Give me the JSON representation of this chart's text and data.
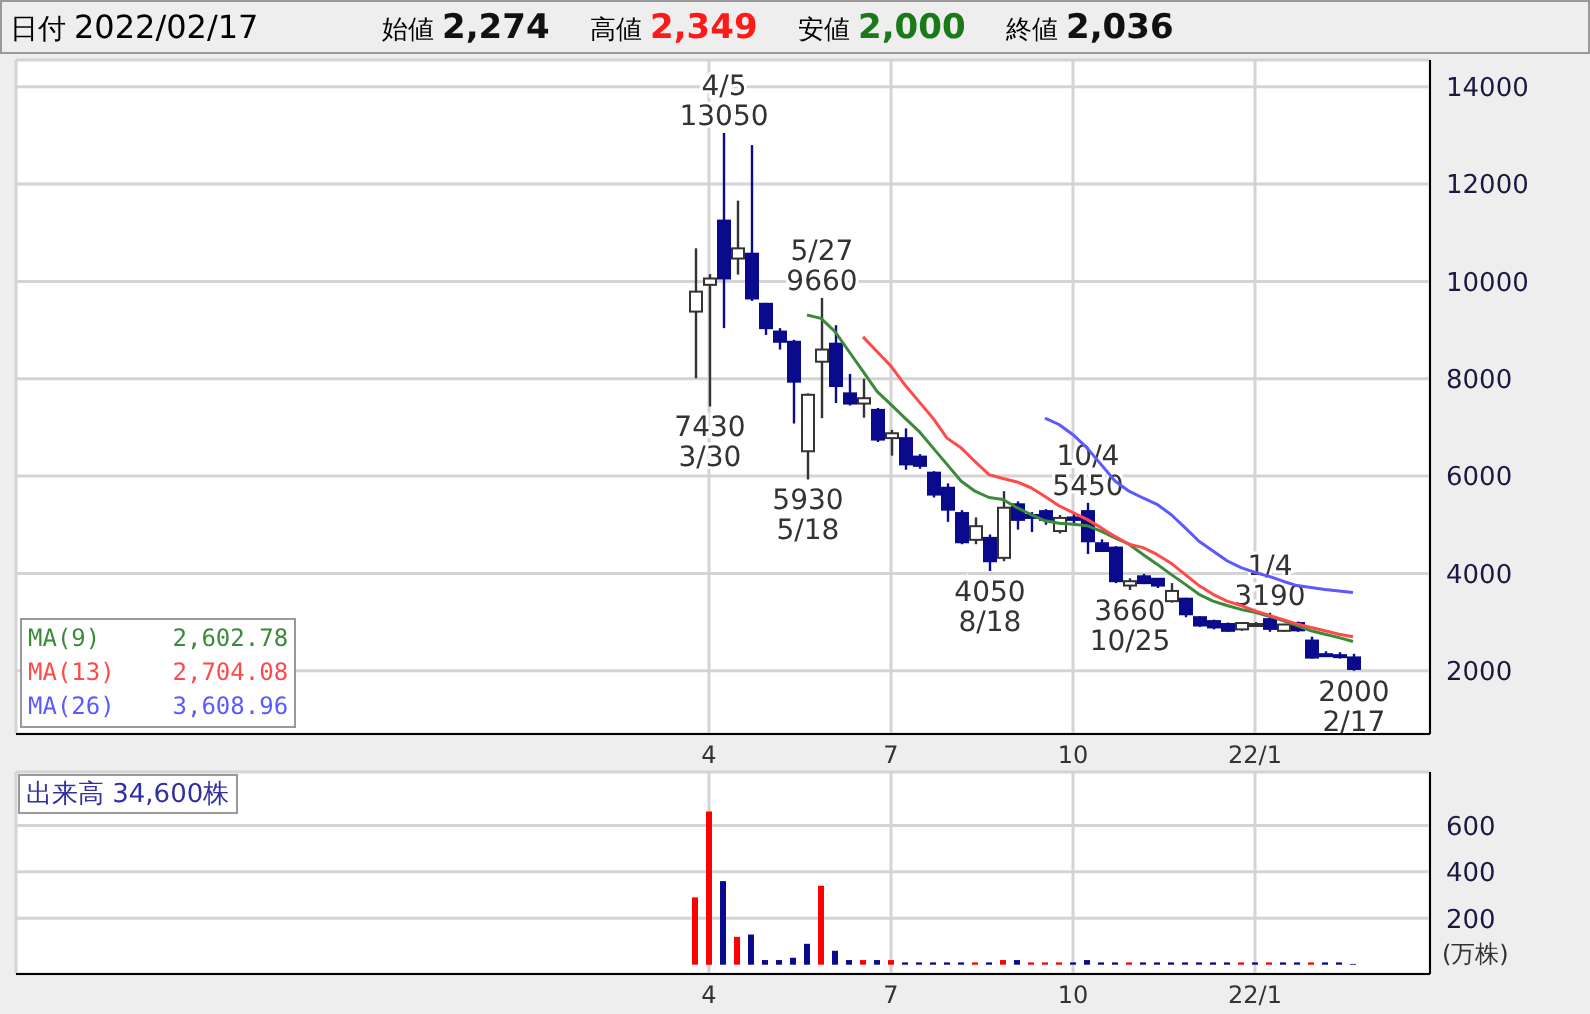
{
  "chart_data": [
    {
      "type": "candlestick",
      "title": "日付 2022/02/17",
      "categories": [
        null,
        null,
        null,
        null,
        null,
        null,
        null,
        null,
        null,
        null,
        null,
        null,
        null,
        null,
        null,
        null,
        null,
        null,
        null,
        null,
        null,
        null,
        null,
        null,
        null,
        null,
        null,
        null,
        null,
        null,
        null,
        null,
        null,
        null,
        null,
        null,
        null,
        null,
        null,
        null,
        null,
        null,
        null,
        null,
        null,
        null,
        null,
        null,
        null,
        "4",
        null,
        null,
        null,
        null,
        null,
        null,
        null,
        null,
        null,
        null,
        null,
        null,
        "7",
        null,
        null,
        null,
        null,
        null,
        null,
        null,
        null,
        null,
        null,
        null,
        null,
        "10",
        null,
        null,
        null,
        null,
        null,
        null,
        null,
        null,
        null,
        null,
        null,
        null,
        "22/1",
        null,
        null,
        null,
        null,
        null,
        null,
        null,
        null,
        null,
        null,
        null,
        null
      ],
      "ohlc": [
        null,
        null,
        null,
        null,
        null,
        null,
        null,
        null,
        null,
        null,
        null,
        null,
        null,
        null,
        null,
        null,
        null,
        null,
        null,
        null,
        null,
        null,
        null,
        null,
        null,
        null,
        null,
        null,
        null,
        null,
        null,
        null,
        null,
        null,
        null,
        null,
        null,
        null,
        null,
        null,
        null,
        null,
        null,
        null,
        null,
        null,
        null,
        null,
        [
          9380,
          10680,
          8010,
          9790
        ],
        [
          9930,
          10150,
          7430,
          10060
        ],
        [
          11250,
          13050,
          9040,
          10060
        ],
        [
          10470,
          11660,
          10140,
          10680
        ],
        [
          10570,
          12800,
          9600,
          9650
        ],
        [
          9540,
          9560,
          8900,
          9040
        ],
        [
          8970,
          9040,
          8600,
          8760
        ],
        [
          8760,
          8800,
          7080,
          7940
        ],
        [
          6510,
          7700,
          5930,
          7670
        ],
        [
          8350,
          9660,
          7190,
          8600
        ],
        [
          8720,
          9100,
          7500,
          7850
        ],
        [
          7700,
          8100,
          7450,
          7490
        ],
        [
          7490,
          8000,
          7200,
          7600
        ],
        [
          7360,
          7400,
          6700,
          6750
        ],
        [
          6780,
          6950,
          6420,
          6880
        ],
        [
          6780,
          6980,
          6130,
          6240
        ],
        [
          6400,
          6450,
          6150,
          6210
        ],
        [
          6070,
          6100,
          5560,
          5620
        ],
        [
          5760,
          5850,
          5060,
          5310
        ],
        [
          5240,
          5300,
          4600,
          4640
        ],
        [
          4690,
          5150,
          4600,
          4970
        ],
        [
          4730,
          4800,
          4050,
          4250
        ],
        [
          4320,
          5690,
          4250,
          5350
        ],
        [
          5420,
          5480,
          4900,
          5100
        ],
        [
          5200,
          5260,
          4850,
          5140
        ],
        [
          5280,
          5320,
          5000,
          5100
        ],
        [
          4870,
          5200,
          4820,
          5140
        ],
        [
          5150,
          5250,
          5000,
          5100
        ],
        [
          5280,
          5450,
          4400,
          4660
        ],
        [
          4620,
          4700,
          4450,
          4460
        ],
        [
          4530,
          4560,
          3800,
          3840
        ],
        [
          3750,
          3900,
          3660,
          3840
        ],
        [
          3940,
          3990,
          3780,
          3800
        ],
        [
          3890,
          3900,
          3700,
          3750
        ],
        [
          3430,
          3800,
          3400,
          3640
        ],
        [
          3480,
          3500,
          3100,
          3160
        ],
        [
          3100,
          3120,
          2900,
          2930
        ],
        [
          3020,
          3050,
          2850,
          2890
        ],
        [
          2960,
          2990,
          2800,
          2820
        ],
        [
          2850,
          3000,
          2820,
          2980
        ],
        [
          2960,
          3000,
          2900,
          2960
        ],
        [
          3060,
          3190,
          2800,
          2860
        ],
        [
          2820,
          2960,
          2800,
          2950
        ],
        [
          2980,
          3010,
          2800,
          2830
        ],
        [
          2620,
          2700,
          2250,
          2270
        ],
        [
          2340,
          2400,
          2300,
          2330
        ],
        [
          2320,
          2380,
          2250,
          2300
        ],
        [
          2274,
          2349,
          2000,
          2036
        ],
        null,
        null,
        null,
        null,
        null
      ],
      "colors": [
        null,
        null,
        null,
        null,
        null,
        null,
        null,
        null,
        null,
        null,
        null,
        null,
        null,
        null,
        null,
        null,
        null,
        null,
        null,
        null,
        null,
        null,
        null,
        null,
        null,
        null,
        null,
        null,
        null,
        null,
        null,
        null,
        null,
        null,
        null,
        null,
        null,
        null,
        null,
        null,
        null,
        null,
        null,
        null,
        null,
        null,
        null,
        null,
        "#ffffff",
        "#ffffff",
        "#0a0a8c",
        "#ffffff",
        "#0a0a8c",
        "#0a0a8c",
        "#0a0a8c",
        "#0a0a8c",
        "#ffffff",
        "#ffffff",
        "#0a0a8c",
        "#0a0a8c",
        "#ffffff",
        "#0a0a8c",
        "#ffffff",
        "#0a0a8c",
        "#0a0a8c",
        "#0a0a8c",
        "#0a0a8c",
        "#0a0a8c",
        "#ffffff",
        "#0a0a8c",
        "#ffffff",
        "#0a0a8c",
        "#0a0a8c",
        "#0a0a8c",
        "#ffffff",
        "#0a0a8c",
        "#0a0a8c",
        "#0a0a8c",
        "#0a0a8c",
        "#ffffff",
        "#0a0a8c",
        "#0a0a8c",
        "#ffffff",
        "#0a0a8c",
        "#0a0a8c",
        "#0a0a8c",
        "#0a0a8c",
        "#ffffff",
        "#ffffff",
        "#0a0a8c",
        "#ffffff",
        "#0a0a8c",
        "#0a0a8c",
        "#0a0a8c",
        "#0a0a8c",
        "#0a0a8c",
        null,
        null,
        null,
        null,
        null
      ],
      "series": [
        {
          "type": "line",
          "name": "MA(9)     2,602.78",
          "color": "#3a8a3a",
          "values": [
            null,
            null,
            null,
            null,
            null,
            null,
            null,
            null,
            null,
            null,
            null,
            null,
            null,
            null,
            null,
            null,
            null,
            null,
            null,
            null,
            null,
            null,
            null,
            null,
            null,
            null,
            null,
            null,
            null,
            null,
            null,
            null,
            null,
            null,
            null,
            null,
            null,
            null,
            null,
            null,
            null,
            null,
            null,
            null,
            null,
            null,
            null,
            null,
            null,
            null,
            null,
            null,
            null,
            null,
            null,
            null,
            9310,
            9240,
            8970,
            8560,
            8150,
            7740,
            7470,
            7190,
            6920,
            6580,
            6240,
            5900,
            5690,
            5560,
            5520,
            5350,
            5210,
            5080,
            5030,
            5010,
            4980,
            4870,
            4730,
            4600,
            4390,
            4190,
            3980,
            3780,
            3570,
            3430,
            3340,
            3260,
            3200,
            3120,
            3030,
            2930,
            2820,
            2750,
            2680,
            2600,
            null,
            null,
            null,
            null,
            null
          ]
        },
        {
          "type": "line",
          "name": "MA(13)    2,704.08",
          "color": "#ff4a4a",
          "values": [
            null,
            null,
            null,
            null,
            null,
            null,
            null,
            null,
            null,
            null,
            null,
            null,
            null,
            null,
            null,
            null,
            null,
            null,
            null,
            null,
            null,
            null,
            null,
            null,
            null,
            null,
            null,
            null,
            null,
            null,
            null,
            null,
            null,
            null,
            null,
            null,
            null,
            null,
            null,
            null,
            null,
            null,
            null,
            null,
            null,
            null,
            null,
            null,
            null,
            null,
            null,
            null,
            null,
            null,
            null,
            null,
            null,
            null,
            null,
            null,
            8860,
            8560,
            8260,
            7870,
            7530,
            7190,
            6780,
            6580,
            6300,
            6030,
            5950,
            5880,
            5760,
            5580,
            5390,
            5250,
            5110,
            4940,
            4760,
            4600,
            4530,
            4390,
            4210,
            3980,
            3750,
            3570,
            3430,
            3340,
            3230,
            3140,
            3050,
            2960,
            2890,
            2820,
            2750,
            2700,
            null,
            null,
            null,
            null,
            null
          ]
        },
        {
          "type": "line",
          "name": "MA(26)    3,608.96",
          "color": "#5a5aff",
          "values": [
            null,
            null,
            null,
            null,
            null,
            null,
            null,
            null,
            null,
            null,
            null,
            null,
            null,
            null,
            null,
            null,
            null,
            null,
            null,
            null,
            null,
            null,
            null,
            null,
            null,
            null,
            null,
            null,
            null,
            null,
            null,
            null,
            null,
            null,
            null,
            null,
            null,
            null,
            null,
            null,
            null,
            null,
            null,
            null,
            null,
            null,
            null,
            null,
            null,
            null,
            null,
            null,
            null,
            null,
            null,
            null,
            null,
            null,
            null,
            null,
            null,
            null,
            null,
            null,
            null,
            null,
            null,
            null,
            null,
            null,
            null,
            null,
            null,
            7190,
            7060,
            6850,
            6580,
            6240,
            5900,
            5690,
            5550,
            5420,
            5210,
            4940,
            4660,
            4460,
            4260,
            4120,
            4020,
            3940,
            3840,
            3750,
            3710,
            3670,
            3640,
            3610,
            null,
            null,
            null,
            null,
            null
          ]
        }
      ],
      "ylim": [
        700,
        14550
      ],
      "yticks": [
        2000,
        4000,
        6000,
        8000,
        10000,
        12000,
        14000
      ],
      "grid": true,
      "legend": "bottom left",
      "annotations": [
        "始値 2,274",
        "高値 2,349",
        "安値 2,000",
        "終値 2,036",
        {
          "text": "7430",
          "y": 7430
        },
        {
          "text": "3/30",
          "y": 7430
        },
        {
          "text": "4/5",
          "y": 13050
        },
        {
          "text": "13050",
          "y": 13050
        },
        {
          "text": "5930",
          "y": 5930
        },
        {
          "text": "5/18",
          "y": 5930
        },
        {
          "text": "5/27",
          "y": 9660
        },
        {
          "text": "9660",
          "y": 9660
        },
        {
          "text": "4050",
          "y": 4050
        },
        {
          "text": "8/18",
          "y": 4050
        },
        {
          "text": "10/4",
          "y": 5450
        },
        {
          "text": "5450",
          "y": 5450
        },
        {
          "text": "3660",
          "y": 3660
        },
        {
          "text": "10/25",
          "y": 3660
        },
        {
          "text": "1/4",
          "y": 3190
        },
        {
          "text": "3190",
          "y": 3190
        },
        {
          "text": "2000",
          "y": 2000
        },
        {
          "text": "2/17",
          "y": 2000
        }
      ]
    },
    {
      "type": "bar",
      "title": "出来高 34,600株",
      "ylabel": "(万株)",
      "categories": [
        null,
        null,
        null,
        null,
        null,
        null,
        null,
        null,
        null,
        null,
        null,
        null,
        null,
        null,
        null,
        null,
        null,
        null,
        null,
        null,
        null,
        null,
        null,
        null,
        null,
        null,
        null,
        null,
        null,
        null,
        null,
        null,
        null,
        null,
        null,
        null,
        null,
        null,
        null,
        null,
        null,
        null,
        null,
        null,
        null,
        null,
        null,
        null,
        null,
        "4",
        null,
        null,
        null,
        null,
        null,
        null,
        null,
        null,
        null,
        null,
        null,
        null,
        "7",
        null,
        null,
        null,
        null,
        null,
        null,
        null,
        null,
        null,
        null,
        null,
        null,
        "10",
        null,
        null,
        null,
        null,
        null,
        null,
        null,
        null,
        null,
        null,
        null,
        null,
        "22/1",
        null,
        null,
        null,
        null,
        null,
        null,
        null,
        null,
        null,
        null,
        null,
        null
      ],
      "values": [
        null,
        null,
        null,
        null,
        null,
        null,
        null,
        null,
        null,
        null,
        null,
        null,
        null,
        null,
        null,
        null,
        null,
        null,
        null,
        null,
        null,
        null,
        null,
        null,
        null,
        null,
        null,
        null,
        null,
        null,
        null,
        null,
        null,
        null,
        null,
        null,
        null,
        null,
        null,
        null,
        null,
        null,
        null,
        null,
        null,
        null,
        null,
        null,
        290,
        660,
        360,
        120,
        130,
        20,
        20,
        30,
        90,
        340,
        60,
        20,
        20,
        20,
        20,
        10,
        10,
        10,
        10,
        10,
        10,
        10,
        20,
        20,
        10,
        10,
        10,
        10,
        20,
        10,
        10,
        10,
        10,
        10,
        10,
        10,
        10,
        10,
        10,
        10,
        10,
        10,
        10,
        10,
        10,
        10,
        10,
        3.46,
        null,
        null,
        null,
        null,
        null
      ],
      "colors": [
        null,
        null,
        null,
        null,
        null,
        null,
        null,
        null,
        null,
        null,
        null,
        null,
        null,
        null,
        null,
        null,
        null,
        null,
        null,
        null,
        null,
        null,
        null,
        null,
        null,
        null,
        null,
        null,
        null,
        null,
        null,
        null,
        null,
        null,
        null,
        null,
        null,
        null,
        null,
        null,
        null,
        null,
        null,
        null,
        null,
        null,
        null,
        null,
        "#ff0000",
        "#ff0000",
        "#0a0a8c",
        "#ff0000",
        "#0a0a8c",
        "#0a0a8c",
        "#0a0a8c",
        "#0a0a8c",
        "#0a0a8c",
        "#ff0000",
        "#0a0a8c",
        "#0a0a8c",
        "#ff0000",
        "#0a0a8c",
        "#ff0000",
        "#0a0a8c",
        "#0a0a8c",
        "#0a0a8c",
        "#0a0a8c",
        "#0a0a8c",
        "#ff0000",
        "#0a0a8c",
        "#ff0000",
        "#0a0a8c",
        "#ff0000",
        "#ff0000",
        "#ff0000",
        "#0a0a8c",
        "#0a0a8c",
        "#0a0a8c",
        "#0a0a8c",
        "#ff0000",
        "#0a0a8c",
        "#0a0a8c",
        "#0a0a8c",
        "#0a0a8c",
        "#0a0a8c",
        "#0a0a8c",
        "#0a0a8c",
        "#ff0000",
        "#0a0a8c",
        "#ff0000",
        "#0a0a8c",
        "#0a0a8c",
        "#ff0000",
        "#0a0a8c",
        "#0a0a8c",
        "#0a0a8c",
        null,
        null,
        null,
        null,
        null
      ],
      "ylim": [
        -40,
        830
      ],
      "yticks": [
        200,
        400,
        600
      ],
      "grid": true
    }
  ]
}
